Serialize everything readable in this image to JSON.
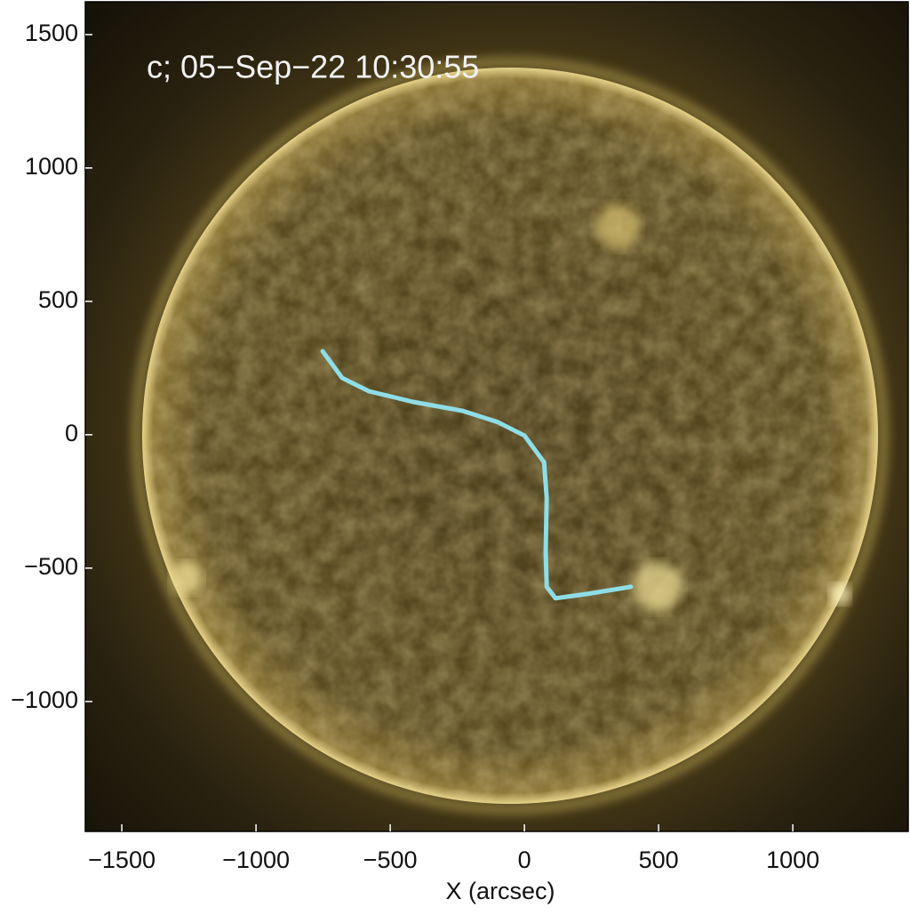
{
  "chart_data": {
    "type": "line",
    "title": "c; 05−Sep−22 10:30:55",
    "x_label": "X (arcsec)",
    "xlim": [
      -1636,
      1430
    ],
    "ylim": [
      -1487,
      1623
    ],
    "xticks": [
      {
        "value": -1500,
        "label": "−1500"
      },
      {
        "value": -1000,
        "label": "−1000"
      },
      {
        "value": -500,
        "label": "−500"
      },
      0,
      500,
      1000
    ],
    "yticks": [
      {
        "value": -1000,
        "label": "−1000"
      },
      {
        "value": -500,
        "label": "−500"
      },
      0,
      500,
      1000,
      1500
    ],
    "series": [
      {
        "color": "#8fdde6",
        "x": [
          -752,
          -679,
          -579,
          -414,
          -232,
          -99,
          0,
          73,
          83,
          79,
          83,
          116,
          232,
          397
        ],
        "values": [
          313,
          213,
          163,
          123,
          90,
          47,
          -3,
          -103,
          -237,
          -437,
          -570,
          -613,
          -597,
          -570
        ]
      }
    ]
  }
}
